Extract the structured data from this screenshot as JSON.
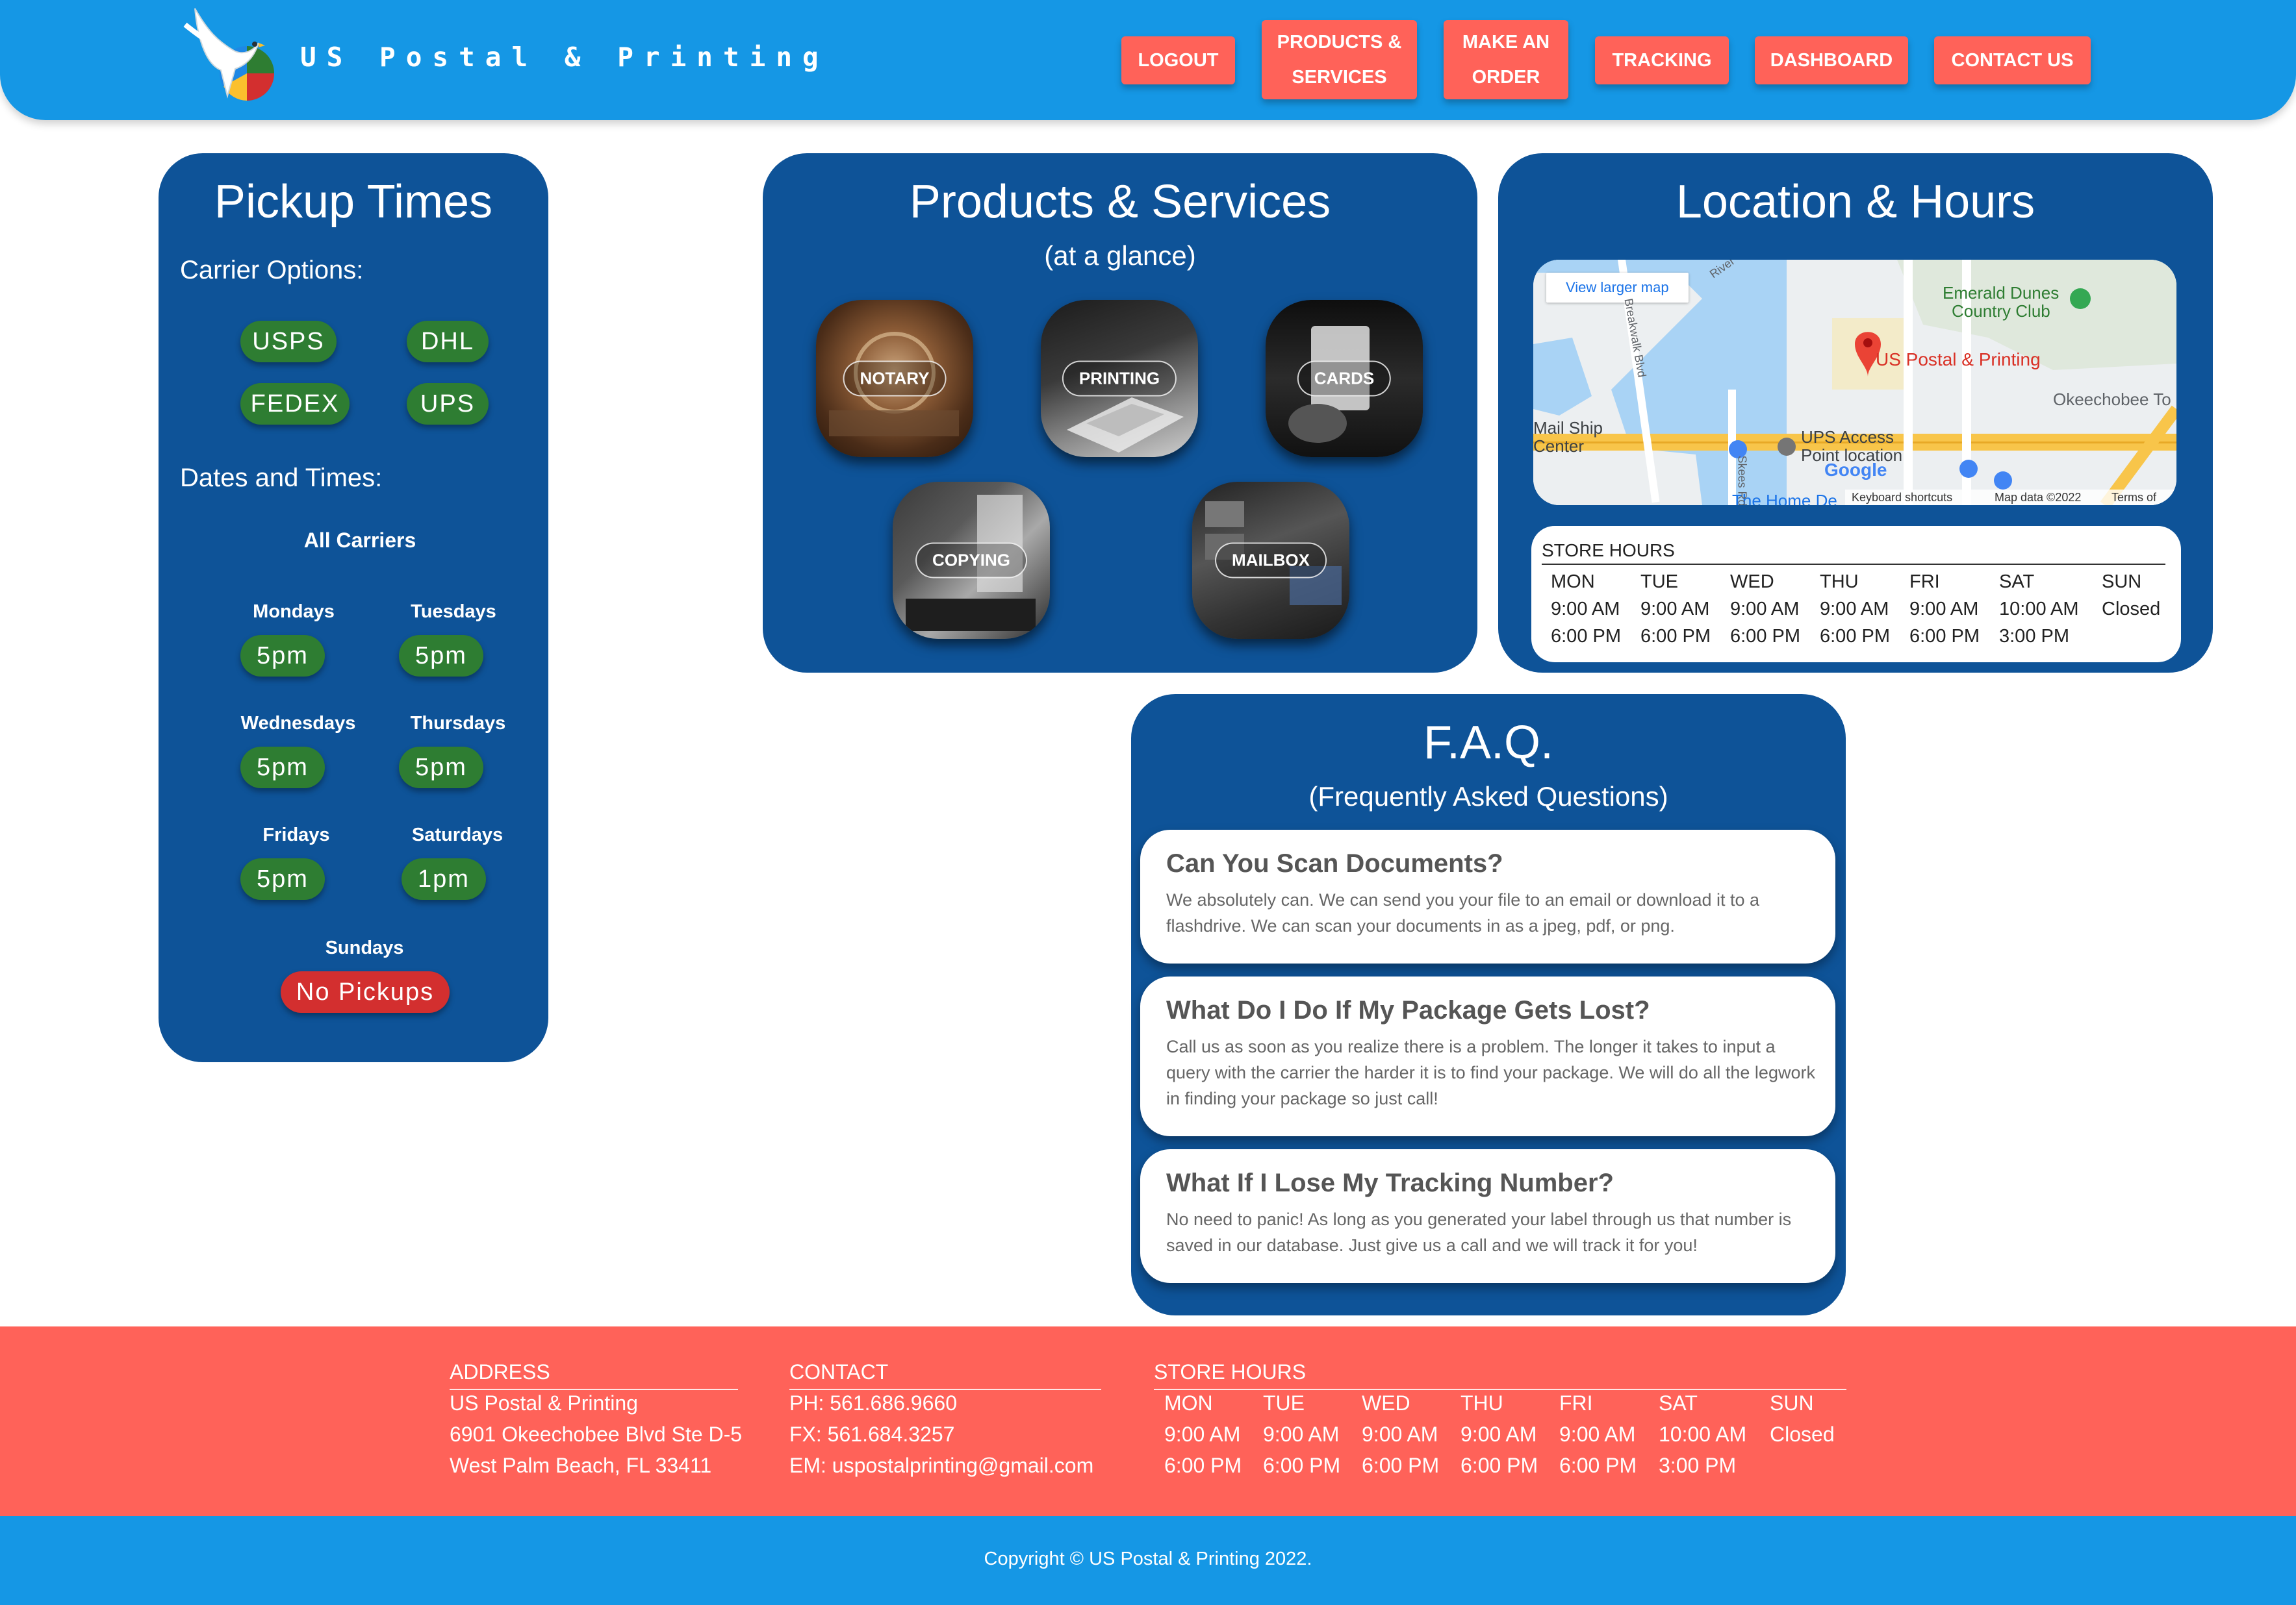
{
  "header": {
    "brand": "US Postal & Printing",
    "nav": [
      {
        "label": "LOGOUT"
      },
      {
        "label": "PRODUCTS &\nSERVICES"
      },
      {
        "label": "MAKE AN\nORDER"
      },
      {
        "label": "TRACKING"
      },
      {
        "label": "DASHBOARD"
      },
      {
        "label": "CONTACT US"
      }
    ]
  },
  "pickup": {
    "title": "Pickup Times",
    "carrier_heading": "Carrier Options:",
    "carriers": [
      "USPS",
      "DHL",
      "FEDEX",
      "UPS"
    ],
    "dates_heading": "Dates and Times:",
    "all_carriers": "All Carriers",
    "days": [
      {
        "day": "Mondays",
        "time": "5pm"
      },
      {
        "day": "Tuesdays",
        "time": "5pm"
      },
      {
        "day": "Wednesdays",
        "time": "5pm"
      },
      {
        "day": "Thursdays",
        "time": "5pm"
      },
      {
        "day": "Fridays",
        "time": "5pm"
      },
      {
        "day": "Saturdays",
        "time": "1pm"
      }
    ],
    "sunday_label": "Sundays",
    "sunday_value": "No Pickups"
  },
  "products": {
    "title": "Products & Services",
    "subtitle": "(at a glance)",
    "tiles": [
      "NOTARY",
      "PRINTING",
      "CARDS",
      "COPYING",
      "MAILBOX"
    ]
  },
  "location": {
    "title": "Location & Hours",
    "map": {
      "view_larger": "View larger map",
      "pin_label": "US Postal & Printing",
      "place_emerald": "Emerald Dunes",
      "place_emerald2": "Country Club",
      "place_okee": "Okeechobee To",
      "place_mailship": "Mail Ship",
      "place_center": "Center",
      "place_ups": "UPS Access",
      "place_ups2": "Point location",
      "place_home": "The Home De",
      "google": "Google",
      "shortcuts": "Keyboard shortcuts",
      "mapdata": "Map data ©2022",
      "terms": "Terms of Use",
      "road_river": "River",
      "road_boardwalk": "Breakwalk Blvd",
      "road_skees": "Skees Rd"
    },
    "hours_title": "STORE HOURS",
    "hours": [
      {
        "day": "MON",
        "open": "9:00 AM",
        "close": "6:00 PM"
      },
      {
        "day": "TUE",
        "open": "9:00 AM",
        "close": "6:00 PM"
      },
      {
        "day": "WED",
        "open": "9:00 AM",
        "close": "6:00 PM"
      },
      {
        "day": "THU",
        "open": "9:00 AM",
        "close": "6:00 PM"
      },
      {
        "day": "FRI",
        "open": "9:00 AM",
        "close": "6:00 PM"
      },
      {
        "day": "SAT",
        "open": "10:00 AM",
        "close": "3:00 PM"
      },
      {
        "day": "SUN",
        "open": "Closed",
        "close": ""
      }
    ]
  },
  "faq": {
    "title": "F.A.Q.",
    "subtitle": "(Frequently Asked Questions)",
    "items": [
      {
        "q": "Can You Scan Documents?",
        "a": "We absolutely can. We can send you your file to an email or download it to a flashdrive. We can scan your documents in as a jpeg, pdf, or png."
      },
      {
        "q": "What Do I Do If My Package Gets Lost?",
        "a": "Call us as soon as you realize there is a problem. The longer it takes to input a query with the carrier the harder it is to find your package. We will do all the legwork in finding your package so just call!"
      },
      {
        "q": "What If I Lose My Tracking Number?",
        "a": "No need to panic! As long as you generated your label through us that number is saved in our database. Just give us a call and we will track it for you!"
      }
    ]
  },
  "footer": {
    "address_heading": "ADDRESS",
    "address": [
      "US Postal & Printing",
      "6901 Okeechobee Blvd Ste D-5",
      "West Palm Beach, FL 33411"
    ],
    "contact_heading": "CONTACT",
    "contact": [
      "PH: 561.686.9660",
      "FX: 561.684.3257",
      "EM: uspostalprinting@gmail.com"
    ],
    "hours_heading": "STORE HOURS",
    "copyright": "Copyright © US Postal & Printing 2022."
  }
}
